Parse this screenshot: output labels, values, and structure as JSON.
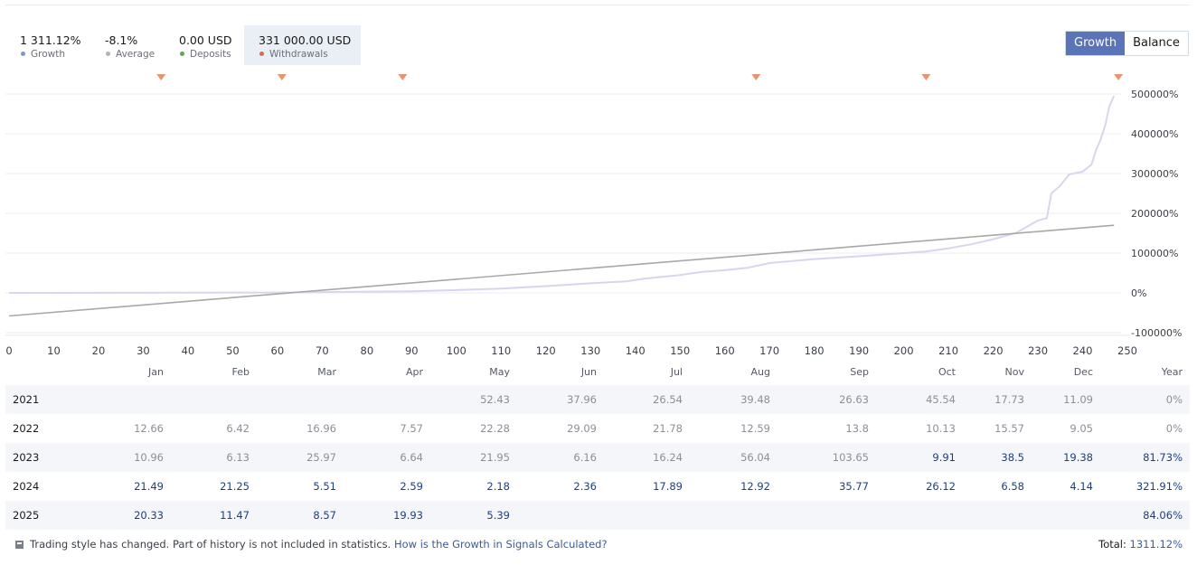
{
  "stats": [
    {
      "value": "1 311.12%",
      "label": "Growth",
      "color": "#7a96d6"
    },
    {
      "value": "-8.1%",
      "label": "Average",
      "color": "#b0b3b8"
    },
    {
      "value": "0.00 USD",
      "label": "Deposits",
      "color": "#5fa84f"
    },
    {
      "value": "331 000.00 USD",
      "label": "Withdrawals",
      "color": "#e0684a"
    }
  ],
  "toggle": {
    "growth_label": "Growth",
    "balance_label": "Balance"
  },
  "chart_data": {
    "type": "line",
    "xlim": [
      0,
      250
    ],
    "ylim": [
      -100000,
      500000
    ],
    "x_ticks": [
      0,
      10,
      20,
      30,
      40,
      50,
      60,
      70,
      80,
      90,
      100,
      110,
      120,
      130,
      140,
      150,
      160,
      170,
      180,
      190,
      200,
      210,
      220,
      230,
      240,
      250
    ],
    "y_ticks": [
      -100000,
      0,
      100000,
      200000,
      300000,
      400000,
      500000
    ],
    "y_tick_labels": [
      "-100000%",
      "0%",
      "100000%",
      "200000%",
      "300000%",
      "400000%",
      "500000%"
    ],
    "grid": true,
    "series": [
      {
        "color": "#d6d6ee",
        "x": [
          0,
          60,
          90,
          100,
          110,
          120,
          130,
          138,
          142,
          150,
          155,
          160,
          165,
          170,
          180,
          190,
          200,
          205,
          210,
          215,
          220,
          225,
          230,
          232,
          233,
          235,
          237,
          240,
          242,
          243,
          244,
          245,
          246,
          247
        ],
        "y": [
          0,
          1000,
          4000,
          7000,
          11000,
          17000,
          24000,
          29000,
          36000,
          45000,
          53000,
          57000,
          63000,
          75000,
          85000,
          92000,
          100000,
          104000,
          112000,
          122000,
          135000,
          150000,
          182000,
          188000,
          250000,
          270000,
          298000,
          305000,
          323000,
          360000,
          385000,
          420000,
          470000,
          495000
        ]
      },
      {
        "color": "#a8a8a8",
        "x": [
          0,
          247
        ],
        "y": [
          -58000,
          170000
        ]
      }
    ],
    "withdrawal_markers_x": [
      34,
      61,
      88,
      167,
      205,
      248
    ],
    "marker_color": "#e8956f"
  },
  "table": {
    "headers": [
      "Jan",
      "Feb",
      "Mar",
      "Apr",
      "May",
      "Jun",
      "Jul",
      "Aug",
      "Sep",
      "Oct",
      "Nov",
      "Dec",
      "Year"
    ],
    "rows": [
      {
        "year": "2021",
        "values": [
          "",
          "",
          "",
          "",
          "52.43",
          "37.96",
          "26.54",
          "39.48",
          "26.63",
          "45.54",
          "17.73",
          "11.09",
          "0%"
        ],
        "strong": [
          false,
          false,
          false,
          false,
          false,
          false,
          false,
          false,
          false,
          false,
          false,
          false,
          false
        ]
      },
      {
        "year": "2022",
        "values": [
          "12.66",
          "6.42",
          "16.96",
          "7.57",
          "22.28",
          "29.09",
          "21.78",
          "12.59",
          "13.8",
          "10.13",
          "15.57",
          "9.05",
          "0%"
        ],
        "strong": [
          false,
          false,
          false,
          false,
          false,
          false,
          false,
          false,
          false,
          false,
          false,
          false,
          false
        ]
      },
      {
        "year": "2023",
        "values": [
          "10.96",
          "6.13",
          "25.97",
          "6.64",
          "21.95",
          "6.16",
          "16.24",
          "56.04",
          "103.65",
          "9.91",
          "38.5",
          "19.38",
          "81.73%"
        ],
        "strong": [
          false,
          false,
          false,
          false,
          false,
          false,
          false,
          false,
          false,
          true,
          true,
          true,
          true
        ]
      },
      {
        "year": "2024",
        "values": [
          "21.49",
          "21.25",
          "5.51",
          "2.59",
          "2.18",
          "2.36",
          "17.89",
          "12.92",
          "35.77",
          "26.12",
          "6.58",
          "4.14",
          "321.91%"
        ],
        "strong": [
          true,
          true,
          true,
          true,
          true,
          true,
          true,
          true,
          true,
          true,
          true,
          true,
          true
        ]
      },
      {
        "year": "2025",
        "values": [
          "20.33",
          "11.47",
          "8.57",
          "19.93",
          "5.39",
          "",
          "",
          "",
          "",
          "",
          "",
          "",
          "84.06%"
        ],
        "strong": [
          true,
          true,
          true,
          true,
          true,
          false,
          false,
          false,
          false,
          false,
          false,
          false,
          true
        ]
      }
    ]
  },
  "footer": {
    "note": "Trading style has changed. Part of history is not included in statistics.",
    "link": "How is the Growth in Signals Calculated?",
    "total_label": "Total:",
    "total_value": "1311.12%"
  }
}
